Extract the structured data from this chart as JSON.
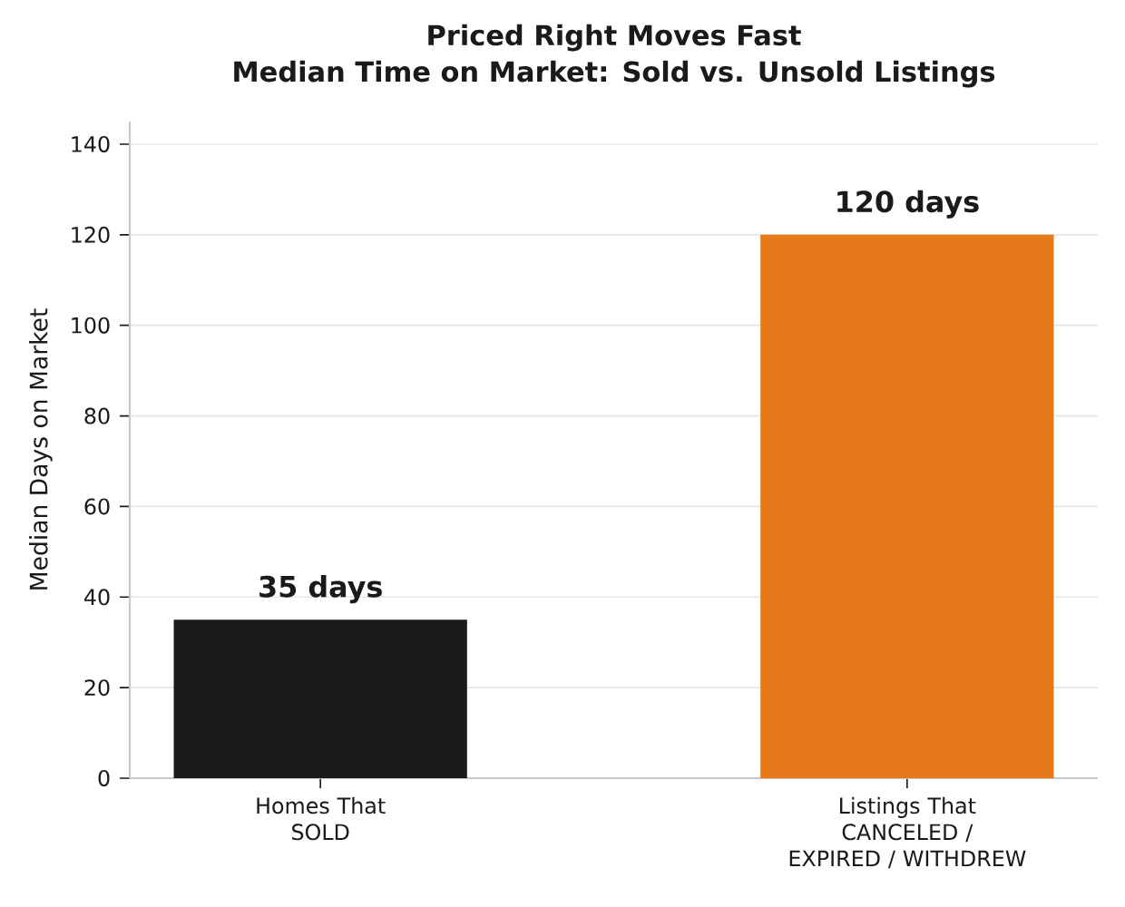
{
  "chart_data": {
    "type": "bar",
    "title": "Priced Right Moves Fast",
    "subtitle": "Median Time on Market: Sold vs. Unsold Listings",
    "ylabel": "Median Days on Market",
    "categories": [
      "Homes That\nSOLD",
      "Listings That\nCANCELED /\nEXPIRED / WITHDREW"
    ],
    "values": [
      35,
      120
    ],
    "colors": [
      "#1b1b1b",
      "#e67a1b"
    ],
    "value_labels": [
      "35 days",
      "120 days"
    ],
    "ylim": [
      0,
      145
    ],
    "yticks": [
      0,
      20,
      40,
      60,
      80,
      100,
      120,
      140
    ],
    "grid": "y"
  }
}
